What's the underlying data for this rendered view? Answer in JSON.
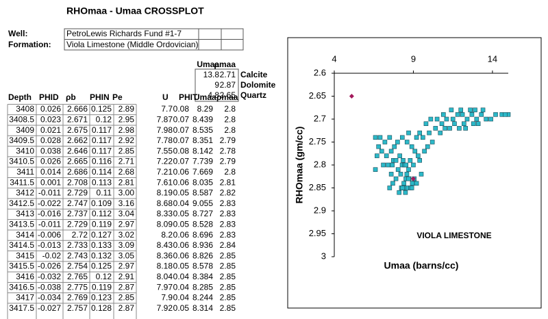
{
  "header": {
    "title": "RHOmaa - Umaa CROSSPLOT",
    "well_label": "Well:",
    "well": "PetroLewis Richards Fund #1-7",
    "formation_label": "Formation:",
    "formation": "Viola Limestone (Middle Ordovician)"
  },
  "minerals": {
    "columns": [
      "Umaa",
      "ρmaa"
    ],
    "rows": [
      [
        "13.8",
        "2.71",
        "Calcite"
      ],
      [
        "9",
        "2.87",
        "Dolomite"
      ],
      [
        "4.8",
        "2.65",
        "Quartz"
      ]
    ]
  },
  "sheet": {
    "columns": [
      "Depth",
      "PHID",
      "ρb",
      "PHIN",
      "Pe",
      "U",
      "PHIT",
      "Umaa",
      "ρmaa"
    ],
    "rows": [
      [
        "3408",
        "0.026",
        "2.666",
        "0.125",
        "2.89",
        "7.7",
        "0.08",
        "8.29",
        "2.8"
      ],
      [
        "3408.5",
        "0.023",
        "2.671",
        "0.12",
        "2.95",
        "7.87",
        "0.07",
        "8.439",
        "2.8"
      ],
      [
        "3409",
        "0.021",
        "2.675",
        "0.117",
        "2.98",
        "7.98",
        "0.07",
        "8.535",
        "2.8"
      ],
      [
        "3409.5",
        "0.028",
        "2.662",
        "0.117",
        "2.92",
        "7.78",
        "0.07",
        "8.351",
        "2.79"
      ],
      [
        "3410",
        "0.038",
        "2.646",
        "0.117",
        "2.85",
        "7.55",
        "0.08",
        "8.142",
        "2.78"
      ],
      [
        "3410.5",
        "0.026",
        "2.665",
        "0.116",
        "2.71",
        "7.22",
        "0.07",
        "7.739",
        "2.79"
      ],
      [
        "3411",
        "0.014",
        "2.686",
        "0.114",
        "2.68",
        "7.21",
        "0.06",
        "7.669",
        "2.8"
      ],
      [
        "3411.5",
        "0.001",
        "2.708",
        "0.113",
        "2.81",
        "7.61",
        "0.06",
        "8.035",
        "2.81"
      ],
      [
        "3412",
        "-0.011",
        "2.729",
        "0.11",
        "3.00",
        "8.19",
        "0.05",
        "8.587",
        "2.82"
      ],
      [
        "3412.5",
        "-0.022",
        "2.747",
        "0.109",
        "3.16",
        "8.68",
        "0.04",
        "9.055",
        "2.83"
      ],
      [
        "3413",
        "-0.016",
        "2.737",
        "0.112",
        "3.04",
        "8.33",
        "0.05",
        "8.727",
        "2.83"
      ],
      [
        "3413.5",
        "-0.011",
        "2.729",
        "0.119",
        "2.97",
        "8.09",
        "0.05",
        "8.528",
        "2.83"
      ],
      [
        "3414",
        "-0.006",
        "2.72",
        "0.127",
        "3.02",
        "8.2",
        "0.06",
        "8.696",
        "2.83"
      ],
      [
        "3414.5",
        "-0.013",
        "2.733",
        "0.133",
        "3.09",
        "8.43",
        "0.06",
        "8.936",
        "2.84"
      ],
      [
        "3415",
        "-0.02",
        "2.743",
        "0.132",
        "3.05",
        "8.36",
        "0.06",
        "8.826",
        "2.85"
      ],
      [
        "3415.5",
        "-0.026",
        "2.754",
        "0.125",
        "2.97",
        "8.18",
        "0.05",
        "8.578",
        "2.85"
      ],
      [
        "3416",
        "-0.032",
        "2.765",
        "0.12",
        "2.91",
        "8.04",
        "0.04",
        "8.384",
        "2.85"
      ],
      [
        "3416.5",
        "-0.038",
        "2.775",
        "0.119",
        "2.87",
        "7.97",
        "0.04",
        "8.285",
        "2.85"
      ],
      [
        "3417",
        "-0.034",
        "2.769",
        "0.123",
        "2.85",
        "7.9",
        "0.04",
        "8.244",
        "2.85"
      ],
      [
        "3417.5",
        "-0.027",
        "2.757",
        "0.128",
        "2.87",
        "7.92",
        "0.05",
        "8.314",
        "2.85"
      ]
    ]
  },
  "chart_data": {
    "type": "scatter",
    "x_label": "Umaa (barns/cc)",
    "y_label": "RHOmaa (gm/cc)",
    "annotation": "VIOLA LIMESTONE",
    "xlim": [
      4,
      15
    ],
    "xticks": [
      4,
      9,
      14
    ],
    "ylim": [
      2.6,
      3
    ],
    "yticks": [
      2.6,
      2.65,
      2.7,
      2.75,
      2.8,
      2.85,
      2.9,
      2.95,
      3
    ],
    "y_reversed": true,
    "x_axis_top": true,
    "series": [
      {
        "color": "#2cb8c8",
        "marker": "square",
        "x": [
          8.29,
          8.439,
          8.535,
          8.351,
          8.142,
          7.739,
          7.669,
          8.035,
          8.587,
          9.055,
          8.727,
          8.528,
          8.696,
          8.936,
          8.826,
          8.578,
          8.384,
          8.285,
          8.244,
          8.314,
          6.6,
          6.9,
          7.2,
          6.8,
          7.5,
          7.0,
          6.7,
          7.3,
          7.6,
          7.8,
          8.0,
          8.3,
          8.6,
          8.9,
          9.1,
          9.3,
          7.4,
          7.9,
          8.8,
          9.0,
          7.6,
          7.9,
          8.2,
          8.4,
          7.7,
          8.1,
          8.5,
          8.9,
          9.2,
          9.5,
          7.5,
          8.7,
          9.4,
          9.7,
          9.9,
          10.2,
          9.6,
          10.0,
          10.4,
          9.4,
          9.8,
          10.1,
          10.5,
          10.8,
          11.0,
          10.7,
          11.3,
          11.6,
          11.9,
          12.2,
          11.5,
          11.8,
          12.1,
          12.4,
          12.7,
          13.0,
          12.6,
          12.9,
          13.3,
          13.6,
          13.9,
          14.2,
          14.6,
          15.0,
          13.1,
          12.3,
          11.1,
          10.9,
          11.4,
          12.0,
          13.4,
          12.8,
          9.2,
          8.7,
          7.1,
          6.6,
          14.8
        ],
        "values": [
          2.8,
          2.8,
          2.8,
          2.79,
          2.78,
          2.79,
          2.8,
          2.81,
          2.82,
          2.83,
          2.83,
          2.83,
          2.83,
          2.84,
          2.85,
          2.85,
          2.85,
          2.85,
          2.85,
          2.85,
          2.74,
          2.74,
          2.75,
          2.76,
          2.74,
          2.77,
          2.78,
          2.78,
          2.77,
          2.76,
          2.75,
          2.74,
          2.75,
          2.76,
          2.77,
          2.78,
          2.8,
          2.79,
          2.79,
          2.8,
          2.82,
          2.83,
          2.82,
          2.84,
          2.84,
          2.86,
          2.86,
          2.85,
          2.84,
          2.82,
          2.85,
          2.81,
          2.79,
          2.77,
          2.76,
          2.75,
          2.74,
          2.73,
          2.72,
          2.73,
          2.71,
          2.7,
          2.7,
          2.71,
          2.72,
          2.73,
          2.72,
          2.71,
          2.72,
          2.71,
          2.7,
          2.69,
          2.69,
          2.7,
          2.69,
          2.7,
          2.68,
          2.68,
          2.69,
          2.7,
          2.7,
          2.69,
          2.69,
          2.69,
          2.71,
          2.72,
          2.7,
          2.69,
          2.68,
          2.68,
          2.68,
          2.71,
          2.74,
          2.73,
          2.8,
          2.81,
          2.69
        ]
      },
      {
        "color": "#a3195b",
        "marker": "diamond",
        "x": [
          5.1,
          9.0
        ],
        "values": [
          2.65,
          2.83
        ]
      }
    ]
  }
}
